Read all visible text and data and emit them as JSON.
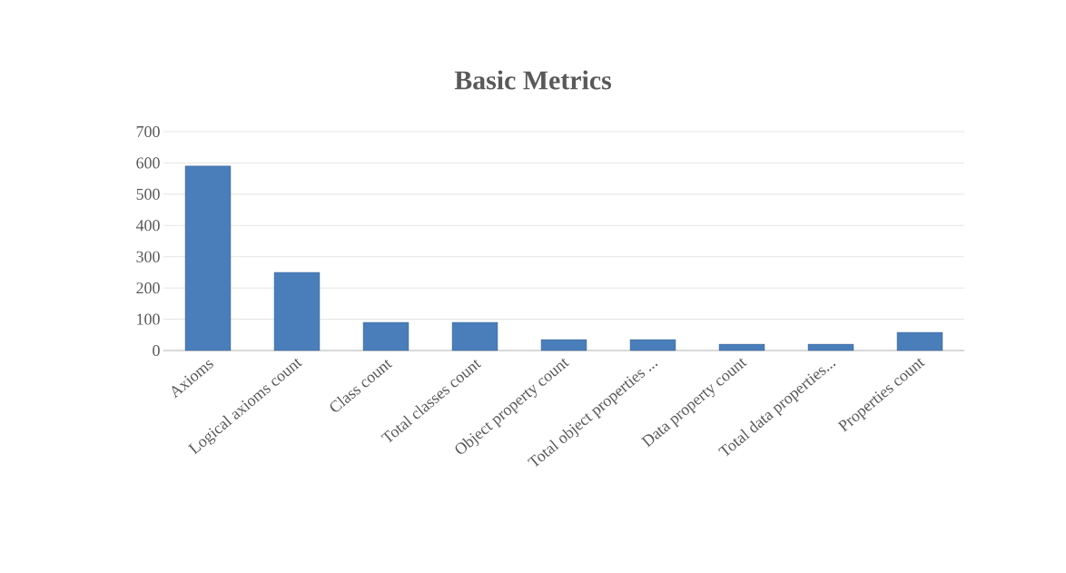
{
  "chart_data": {
    "type": "bar",
    "title": "Basic Metrics",
    "categories": [
      "Axioms",
      "Logical axioms count",
      "Class count",
      "Total classes count",
      "Object property count",
      "Total object properties ...",
      "Data property count",
      "Total data properties...",
      "Properties count"
    ],
    "values": [
      590,
      250,
      90,
      90,
      35,
      35,
      20,
      20,
      58
    ],
    "color": "#4a7ebb",
    "ylim": [
      0,
      700
    ],
    "yticks": [
      0,
      100,
      200,
      300,
      400,
      500,
      600,
      700
    ],
    "grid": "y"
  }
}
